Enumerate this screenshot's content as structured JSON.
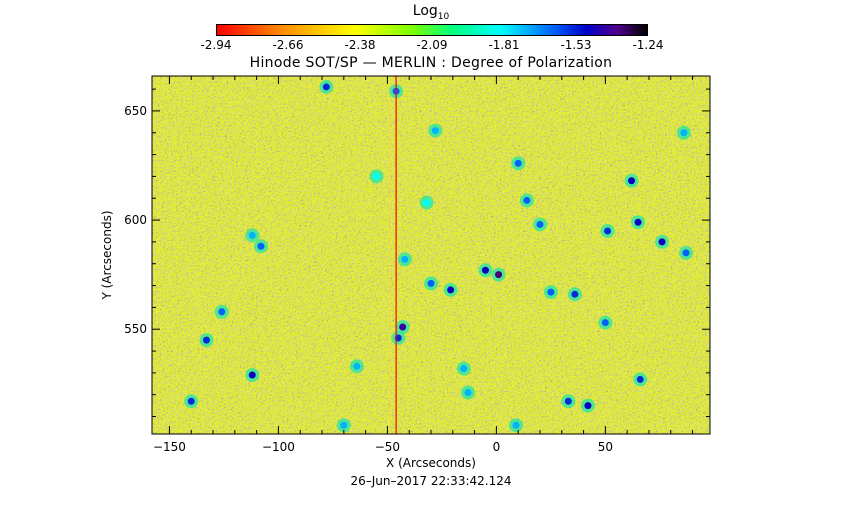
{
  "colorbar": {
    "title_main": "Log",
    "title_sub": "10",
    "ticks": [
      "-2.94",
      "-2.66",
      "-2.38",
      "-2.09",
      "-1.81",
      "-1.53",
      "-1.24"
    ],
    "range": [
      -2.94,
      -1.24
    ],
    "colormap_stops": [
      "#ff0000",
      "#ff8c00",
      "#ffff00",
      "#7fff00",
      "#00ff7f",
      "#00ffff",
      "#0064ff",
      "#0000c8",
      "#50008c",
      "#000000"
    ]
  },
  "chart_data": {
    "type": "heatmap",
    "title": "Hinode SOT/SP — MERLIN : Degree of Polarization",
    "xlabel": "X (Arcseconds)",
    "ylabel": "Y (Arcseconds)",
    "xlim": [
      -158,
      98
    ],
    "ylim": [
      502,
      666
    ],
    "x_ticks": [
      -150,
      -100,
      -50,
      0,
      50
    ],
    "y_ticks": [
      550,
      600,
      650
    ],
    "background_value_range": [
      -2.5,
      -2.2
    ],
    "features": [
      {
        "x": -78,
        "y": 661,
        "value": -1.7
      },
      {
        "x": -46,
        "y": 659,
        "value": -1.8
      },
      {
        "x": -28,
        "y": 641,
        "value": -1.9
      },
      {
        "x": 10,
        "y": 626,
        "value": -1.8
      },
      {
        "x": 62,
        "y": 618,
        "value": -1.6
      },
      {
        "x": -32,
        "y": 608,
        "value": -2.0
      },
      {
        "x": 14,
        "y": 609,
        "value": -1.8
      },
      {
        "x": -112,
        "y": 593,
        "value": -1.9
      },
      {
        "x": -108,
        "y": 588,
        "value": -1.8
      },
      {
        "x": 20,
        "y": 598,
        "value": -1.8
      },
      {
        "x": 51,
        "y": 595,
        "value": -1.7
      },
      {
        "x": 65,
        "y": 599,
        "value": -1.6
      },
      {
        "x": 76,
        "y": 590,
        "value": -1.6
      },
      {
        "x": 87,
        "y": 585,
        "value": -1.8
      },
      {
        "x": -42,
        "y": 582,
        "value": -1.9
      },
      {
        "x": 1,
        "y": 575,
        "value": -1.4
      },
      {
        "x": -5,
        "y": 577,
        "value": -1.6
      },
      {
        "x": -30,
        "y": 571,
        "value": -1.8
      },
      {
        "x": -21,
        "y": 568,
        "value": -1.6
      },
      {
        "x": 25,
        "y": 567,
        "value": -1.8
      },
      {
        "x": 36,
        "y": 566,
        "value": -1.7
      },
      {
        "x": 50,
        "y": 553,
        "value": -1.8
      },
      {
        "x": -43,
        "y": 551,
        "value": -1.5
      },
      {
        "x": -45,
        "y": 546,
        "value": -1.7
      },
      {
        "x": -133,
        "y": 545,
        "value": -1.7
      },
      {
        "x": -112,
        "y": 529,
        "value": -1.6
      },
      {
        "x": -64,
        "y": 533,
        "value": -1.9
      },
      {
        "x": -15,
        "y": 532,
        "value": -1.9
      },
      {
        "x": 66,
        "y": 527,
        "value": -1.7
      },
      {
        "x": -140,
        "y": 517,
        "value": -1.7
      },
      {
        "x": 33,
        "y": 517,
        "value": -1.7
      },
      {
        "x": 42,
        "y": 515,
        "value": -1.6
      },
      {
        "x": -13,
        "y": 521,
        "value": -1.9
      },
      {
        "x": -70,
        "y": 506,
        "value": -1.9
      },
      {
        "x": 9,
        "y": 506,
        "value": -1.9
      },
      {
        "x": -126,
        "y": 558,
        "value": -1.8
      },
      {
        "x": -55,
        "y": 620,
        "value": -2.0
      },
      {
        "x": 86,
        "y": 640,
        "value": -1.9
      }
    ],
    "vertical_artifact": {
      "x": -46,
      "value": -2.94
    }
  },
  "footer": {
    "timestamp": "26–Jun–2017 22:33:42.124"
  }
}
